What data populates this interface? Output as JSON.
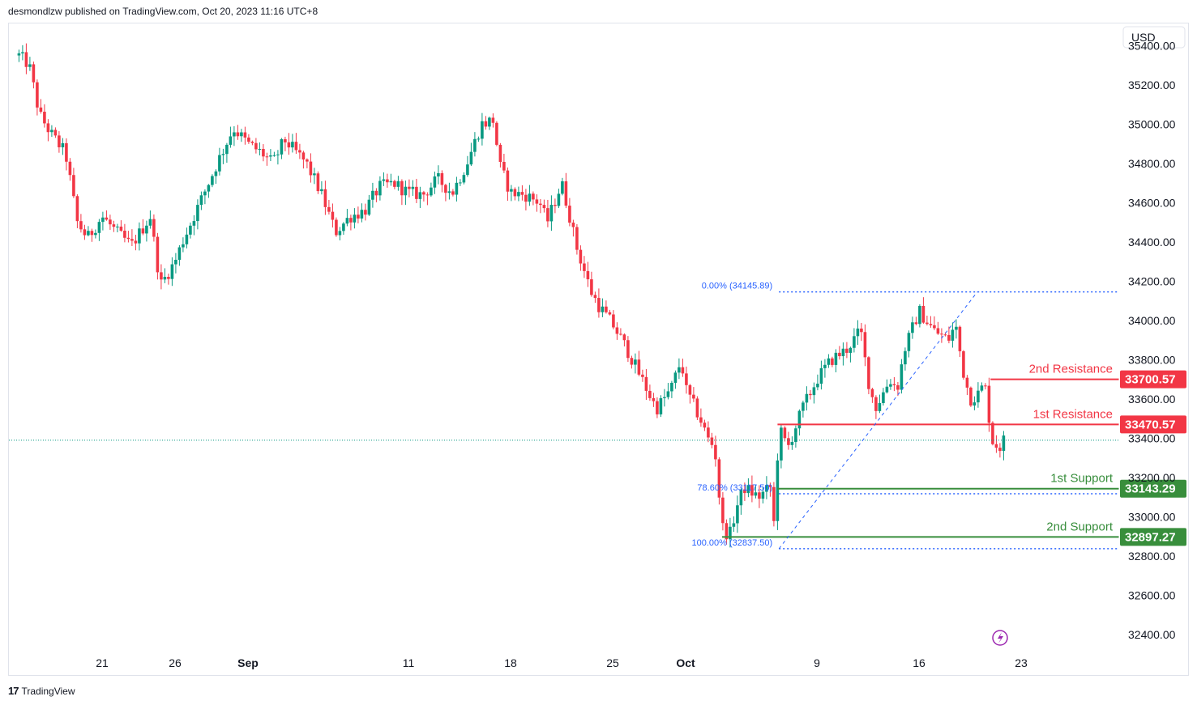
{
  "header": {
    "text": "desmondlzw published on TradingView.com, Oct 20, 2023 11:16 UTC+8"
  },
  "footer": {
    "logo": "17",
    "brand": "TradingView"
  },
  "currency": "USD",
  "colors": {
    "up": "#089981",
    "down": "#f23645",
    "resistance": "#f23645",
    "support": "#388e3c",
    "fib": "#2962ff",
    "current": "#089981"
  },
  "chart_data": {
    "type": "candlestick",
    "y_axis": {
      "ylim": [
        32330,
        35480
      ],
      "ticks": [
        35400,
        35200,
        35000,
        34800,
        34600,
        34400,
        34200,
        34000,
        33800,
        33600,
        33400,
        33200,
        33000,
        32800,
        32600,
        32400
      ],
      "tick_labels": [
        "35400.00",
        "35200.00",
        "35000.00",
        "34800.00",
        "34600.00",
        "34400.00",
        "34200.00",
        "34000.00",
        "33800.00",
        "33600.00",
        "33400.00",
        "33200.00",
        "33000.00",
        "32800.00",
        "32600.00",
        "32400.00"
      ]
    },
    "x_axis": {
      "labels": [
        {
          "text": "21",
          "day": 21
        },
        {
          "text": "26",
          "day": 26
        },
        {
          "text": "Sep",
          "day": 31
        },
        {
          "text": "11",
          "day": 42
        },
        {
          "text": "18",
          "day": 49
        },
        {
          "text": "25",
          "day": 56
        },
        {
          "text": "Oct",
          "day": 61
        },
        {
          "text": "9",
          "day": 70
        },
        {
          "text": "16",
          "day": 77
        },
        {
          "text": "23",
          "day": 84
        }
      ],
      "first_day": 15.3,
      "last_day": 85.3
    },
    "anchors": [
      {
        "day": 15.3,
        "price": 35350
      },
      {
        "day": 16.0,
        "price": 35300
      },
      {
        "day": 16.7,
        "price": 35050
      },
      {
        "day": 17.5,
        "price": 34950
      },
      {
        "day": 18.5,
        "price": 34850
      },
      {
        "day": 19.3,
        "price": 34500
      },
      {
        "day": 20.0,
        "price": 34420
      },
      {
        "day": 21.0,
        "price": 34530
      },
      {
        "day": 22.0,
        "price": 34450
      },
      {
        "day": 23.0,
        "price": 34380
      },
      {
        "day": 24.3,
        "price": 34530
      },
      {
        "day": 25.0,
        "price": 34180
      },
      {
        "day": 26.0,
        "price": 34300
      },
      {
        "day": 26.5,
        "price": 34400
      },
      {
        "day": 28.0,
        "price": 34650
      },
      {
        "day": 29.0,
        "price": 34820
      },
      {
        "day": 30.0,
        "price": 34980
      },
      {
        "day": 31.0,
        "price": 34900
      },
      {
        "day": 32.0,
        "price": 34850
      },
      {
        "day": 32.7,
        "price": 34800
      },
      {
        "day": 33.5,
        "price": 34920
      },
      {
        "day": 35.0,
        "price": 34800
      },
      {
        "day": 36.0,
        "price": 34650
      },
      {
        "day": 37.0,
        "price": 34450
      },
      {
        "day": 38.0,
        "price": 34530
      },
      {
        "day": 39.0,
        "price": 34560
      },
      {
        "day": 40.0,
        "price": 34680
      },
      {
        "day": 41.0,
        "price": 34700
      },
      {
        "day": 42.0,
        "price": 34650
      },
      {
        "day": 43.0,
        "price": 34640
      },
      {
        "day": 44.0,
        "price": 34720
      },
      {
        "day": 45.0,
        "price": 34650
      },
      {
        "day": 46.0,
        "price": 34800
      },
      {
        "day": 47.0,
        "price": 35000
      },
      {
        "day": 47.8,
        "price": 35020
      },
      {
        "day": 48.3,
        "price": 34780
      },
      {
        "day": 49.0,
        "price": 34650
      },
      {
        "day": 50.0,
        "price": 34640
      },
      {
        "day": 51.0,
        "price": 34600
      },
      {
        "day": 51.5,
        "price": 34500
      },
      {
        "day": 52.5,
        "price": 34700
      },
      {
        "day": 53.0,
        "price": 34550
      },
      {
        "day": 53.5,
        "price": 34380
      },
      {
        "day": 54.5,
        "price": 34150
      },
      {
        "day": 55.0,
        "price": 34080
      },
      {
        "day": 56.0,
        "price": 33980
      },
      {
        "day": 57.0,
        "price": 33850
      },
      {
        "day": 58.0,
        "price": 33700
      },
      {
        "day": 59.0,
        "price": 33550
      },
      {
        "day": 60.0,
        "price": 33650
      },
      {
        "day": 60.7,
        "price": 33800
      },
      {
        "day": 61.0,
        "price": 33650
      },
      {
        "day": 62.0,
        "price": 33500
      },
      {
        "day": 62.5,
        "price": 33400
      },
      {
        "day": 63.0,
        "price": 33350
      },
      {
        "day": 63.5,
        "price": 32950
      },
      {
        "day": 64.0,
        "price": 32900
      },
      {
        "day": 64.5,
        "price": 33050
      },
      {
        "day": 65.0,
        "price": 33150
      },
      {
        "day": 66.0,
        "price": 33100
      },
      {
        "day": 66.8,
        "price": 33150
      },
      {
        "day": 67.0,
        "price": 32900
      },
      {
        "day": 67.4,
        "price": 33450
      },
      {
        "day": 68.0,
        "price": 33350
      },
      {
        "day": 69.0,
        "price": 33550
      },
      {
        "day": 70.0,
        "price": 33700
      },
      {
        "day": 71.0,
        "price": 33800
      },
      {
        "day": 72.0,
        "price": 33850
      },
      {
        "day": 73.0,
        "price": 33950
      },
      {
        "day": 73.5,
        "price": 33700
      },
      {
        "day": 74.0,
        "price": 33550
      },
      {
        "day": 75.0,
        "price": 33700
      },
      {
        "day": 75.5,
        "price": 33650
      },
      {
        "day": 76.0,
        "price": 33850
      },
      {
        "day": 77.0,
        "price": 34050
      },
      {
        "day": 77.5,
        "price": 34000
      },
      {
        "day": 78.0,
        "price": 33950
      },
      {
        "day": 79.0,
        "price": 33900
      },
      {
        "day": 79.5,
        "price": 33980
      },
      {
        "day": 80.0,
        "price": 33750
      },
      {
        "day": 80.5,
        "price": 33600
      },
      {
        "day": 81.0,
        "price": 33620
      },
      {
        "day": 81.5,
        "price": 33680
      },
      {
        "day": 82.0,
        "price": 33390
      },
      {
        "day": 82.5,
        "price": 33350
      },
      {
        "day": 82.8,
        "price": 33390
      }
    ],
    "current_price": 33390,
    "levels": [
      {
        "name": "2nd Resistance",
        "price": 33700.57,
        "label": "33700.57",
        "kind": "resistance",
        "start_day": 81.9
      },
      {
        "name": "1st Resistance",
        "price": 33470.57,
        "label": "33470.57",
        "kind": "resistance",
        "start_day": 67.3
      },
      {
        "name": "1st Support",
        "price": 33143.29,
        "label": "33143.29",
        "kind": "support",
        "start_day": 67.3
      },
      {
        "name": "2nd Support",
        "price": 32897.27,
        "label": "32897.27",
        "kind": "support",
        "start_day": 63.5
      }
    ],
    "fib": {
      "start": {
        "day": 67.4,
        "price": 32837.5
      },
      "end": {
        "day": 81.0,
        "price": 34145.89
      },
      "levels": [
        {
          "ratio": "0.00%",
          "price": 34145.89,
          "label": "0.00% (34145.89)"
        },
        {
          "ratio": "78.60%",
          "price": 33117.5,
          "label": "78.60% (33117.50)"
        },
        {
          "ratio": "100.00%",
          "price": 32837.5,
          "label": "100.00% (32837.50)"
        }
      ]
    },
    "grid": false,
    "title": ""
  }
}
